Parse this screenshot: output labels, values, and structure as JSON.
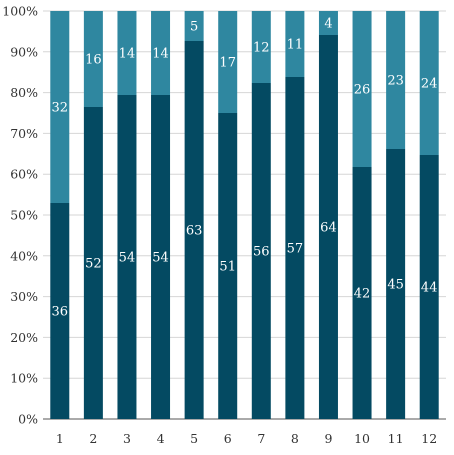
{
  "chart_data": {
    "type": "bar",
    "stacked": "percent",
    "categories": [
      "1",
      "2",
      "3",
      "4",
      "5",
      "6",
      "7",
      "8",
      "9",
      "10",
      "11",
      "12"
    ],
    "series": [
      {
        "values": [
          36,
          52,
          54,
          54,
          63,
          51,
          56,
          57,
          64,
          42,
          45,
          44
        ],
        "color": "#044a62"
      },
      {
        "values": [
          32,
          16,
          14,
          14,
          5,
          17,
          12,
          11,
          4,
          26,
          23,
          24
        ],
        "color": "#2f87a0"
      }
    ],
    "y_ticks": [
      "0%",
      "10%",
      "20%",
      "30%",
      "40%",
      "50%",
      "60%",
      "70%",
      "80%",
      "90%",
      "100%"
    ],
    "ylim": [
      0,
      100
    ],
    "grid": true,
    "data_labels": true,
    "legend": "none",
    "title": "",
    "xlabel": "",
    "ylabel": ""
  }
}
